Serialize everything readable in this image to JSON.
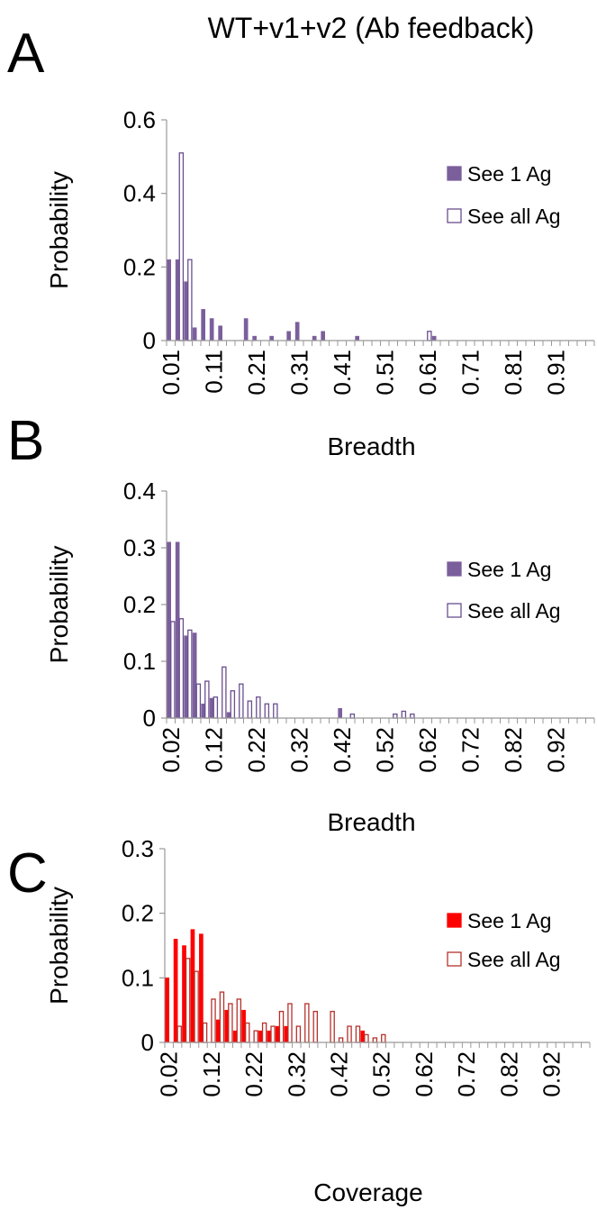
{
  "chart_data": [
    {
      "type": "bar",
      "panel": "A",
      "title": "WT+v1+v2 (Ab feedback)",
      "x_label": "Breadth",
      "y_label": "Probability",
      "categories": [
        "0.01",
        null,
        null,
        null,
        null,
        "0.11",
        null,
        null,
        null,
        null,
        "0.21",
        null,
        null,
        null,
        null,
        "0.31",
        null,
        null,
        null,
        null,
        "0.41",
        null,
        null,
        null,
        null,
        "0.51",
        null,
        null,
        null,
        null,
        "0.61",
        null,
        null,
        null,
        null,
        "0.71",
        null,
        null,
        null,
        null,
        "0.81",
        null,
        null,
        null,
        null,
        "0.91",
        null,
        null,
        null,
        null
      ],
      "series": [
        {
          "name": "See 1 Ag",
          "color": "#7b5f9c",
          "filled": true,
          "values": [
            0.22,
            0.22,
            0.16,
            0.035,
            0.085,
            0.06,
            0.04,
            0,
            0,
            0.06,
            0.012,
            0,
            0.012,
            0,
            0.025,
            0.05,
            0,
            0.012,
            0.025,
            0,
            0,
            0,
            0.012,
            0,
            0,
            0,
            0,
            0,
            0,
            0,
            0,
            0.012,
            0,
            0,
            0,
            0,
            0,
            0,
            0,
            0,
            0,
            0,
            0,
            0,
            0,
            0,
            0,
            0,
            0,
            0
          ]
        },
        {
          "name": "See all Ag",
          "color": "#6a4f8e",
          "filled": false,
          "values": [
            0,
            0.51,
            0.22,
            0,
            0,
            0,
            0,
            0,
            0,
            0,
            0,
            0,
            0,
            0,
            0,
            0,
            0,
            0,
            0,
            0,
            0,
            0,
            0,
            0,
            0,
            0,
            0,
            0,
            0,
            0,
            0.025,
            0,
            0,
            0,
            0,
            0,
            0,
            0,
            0,
            0,
            0,
            0,
            0,
            0,
            0,
            0,
            0,
            0,
            0,
            0
          ]
        }
      ],
      "ylim": [
        0,
        0.6
      ],
      "yticks": [
        0,
        0.2,
        0.4,
        0.6
      ],
      "grid": false
    },
    {
      "type": "bar",
      "panel": "B",
      "x_label": "Breadth",
      "y_label": "Probability",
      "categories": [
        "0.02",
        null,
        null,
        null,
        null,
        "0.12",
        null,
        null,
        null,
        null,
        "0.22",
        null,
        null,
        null,
        null,
        "0.32",
        null,
        null,
        null,
        null,
        "0.42",
        null,
        null,
        null,
        null,
        "0.52",
        null,
        null,
        null,
        null,
        "0.62",
        null,
        null,
        null,
        null,
        "0.72",
        null,
        null,
        null,
        null,
        "0.82",
        null,
        null,
        null,
        null,
        "0.92",
        null,
        null,
        null,
        null
      ],
      "series": [
        {
          "name": "See 1 Ag",
          "color": "#7b5f9c",
          "filled": true,
          "values": [
            0.31,
            0.31,
            0.145,
            0.15,
            0.025,
            0.035,
            0,
            0.01,
            0,
            0,
            0,
            0,
            0,
            0,
            0,
            0,
            0,
            0,
            0,
            0,
            0.017,
            0,
            0,
            0,
            0,
            0,
            0,
            0,
            0,
            0,
            0,
            0,
            0,
            0,
            0,
            0,
            0,
            0,
            0,
            0,
            0,
            0,
            0,
            0,
            0,
            0,
            0,
            0,
            0,
            0
          ]
        },
        {
          "name": "See all Ag",
          "color": "#6a4f8e",
          "filled": false,
          "values": [
            0.17,
            0.175,
            0.155,
            0.06,
            0.065,
            0.037,
            0.09,
            0.048,
            0.06,
            0.03,
            0.037,
            0.025,
            0.025,
            0,
            0,
            0,
            0,
            0,
            0,
            0,
            0,
            0.007,
            0,
            0,
            0,
            0,
            0.007,
            0.012,
            0.007,
            0,
            0,
            0,
            0,
            0,
            0,
            0,
            0,
            0,
            0,
            0,
            0,
            0,
            0,
            0,
            0,
            0,
            0,
            0,
            0,
            0
          ]
        }
      ],
      "ylim": [
        0,
        0.4
      ],
      "yticks": [
        0,
        0.1,
        0.2,
        0.3,
        0.4
      ],
      "grid": false
    },
    {
      "type": "bar",
      "panel": "C",
      "x_label": "Coverage",
      "y_label": "Probability",
      "categories": [
        "0.02",
        null,
        null,
        null,
        null,
        "0.12",
        null,
        null,
        null,
        null,
        "0.22",
        null,
        null,
        null,
        null,
        "0.32",
        null,
        null,
        null,
        null,
        "0.42",
        null,
        null,
        null,
        null,
        "0.52",
        null,
        null,
        null,
        null,
        "0.62",
        null,
        null,
        null,
        null,
        "0.72",
        null,
        null,
        null,
        null,
        "0.82",
        null,
        null,
        null,
        null,
        "0.92",
        null,
        null,
        null,
        null
      ],
      "series": [
        {
          "name": "See 1 Ag",
          "color": "#ff0000",
          "filled": true,
          "values": [
            0.1,
            0.16,
            0.15,
            0.175,
            0.168,
            0,
            0.035,
            0.05,
            0.018,
            0.05,
            0,
            0.018,
            0.018,
            0.025,
            0.025,
            0,
            0,
            0,
            0,
            0,
            0,
            0,
            0,
            0.018,
            0,
            0,
            0,
            0,
            0,
            0,
            0,
            0,
            0,
            0,
            0,
            0,
            0,
            0,
            0,
            0,
            0,
            0,
            0,
            0,
            0,
            0,
            0,
            0,
            0,
            0
          ]
        },
        {
          "name": "See all Ag",
          "color": "#b5322c",
          "filled": false,
          "values": [
            0,
            0.025,
            0.13,
            0.11,
            0.03,
            0.067,
            0.078,
            0.06,
            0.067,
            0.03,
            0.018,
            0.03,
            0.025,
            0.048,
            0.06,
            0.025,
            0.06,
            0.048,
            0,
            0.048,
            0.007,
            0.025,
            0.025,
            0.012,
            0.007,
            0.012,
            0,
            0,
            0,
            0,
            0,
            0,
            0,
            0,
            0,
            0,
            0,
            0,
            0,
            0,
            0,
            0,
            0,
            0,
            0,
            0,
            0,
            0,
            0,
            0
          ]
        }
      ],
      "ylim": [
        0,
        0.3
      ],
      "yticks": [
        0,
        0.1,
        0.2,
        0.3
      ],
      "grid": false
    }
  ]
}
